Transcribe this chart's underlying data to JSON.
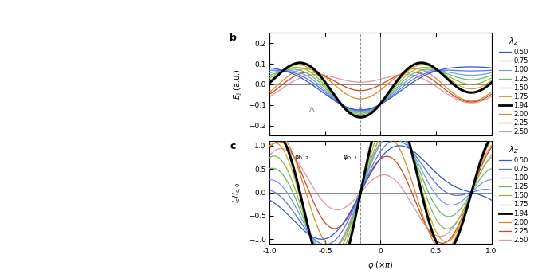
{
  "lambda_values": [
    0.5,
    0.75,
    1.0,
    1.25,
    1.5,
    1.75,
    1.94,
    2.0,
    2.25,
    2.5
  ],
  "lambda_colors": [
    "#3355cc",
    "#5577dd",
    "#7799ee",
    "#66bb66",
    "#88bb44",
    "#ccaa33",
    "#000000",
    "#dd8822",
    "#cc4422",
    "#dd9999"
  ],
  "lambda_linewidths": [
    0.9,
    0.9,
    0.9,
    0.9,
    0.9,
    0.9,
    2.2,
    0.9,
    0.9,
    0.9
  ],
  "phi0_1": -0.18,
  "phi0_2": -0.62,
  "panel_b_ylim": [
    -0.25,
    0.25
  ],
  "panel_c_ylim": [
    -1.1,
    1.1
  ],
  "panel_b_yticks": [
    -0.2,
    -0.1,
    0.0,
    0.1,
    0.2
  ],
  "panel_c_yticks": [
    -1.0,
    -0.5,
    0.0,
    0.5,
    1.0
  ],
  "xlim": [
    -1.0,
    1.0
  ],
  "xticks": [
    -1.0,
    -0.5,
    0.0,
    0.5,
    1.0
  ],
  "fig_width": 6.85,
  "fig_height": 3.44
}
